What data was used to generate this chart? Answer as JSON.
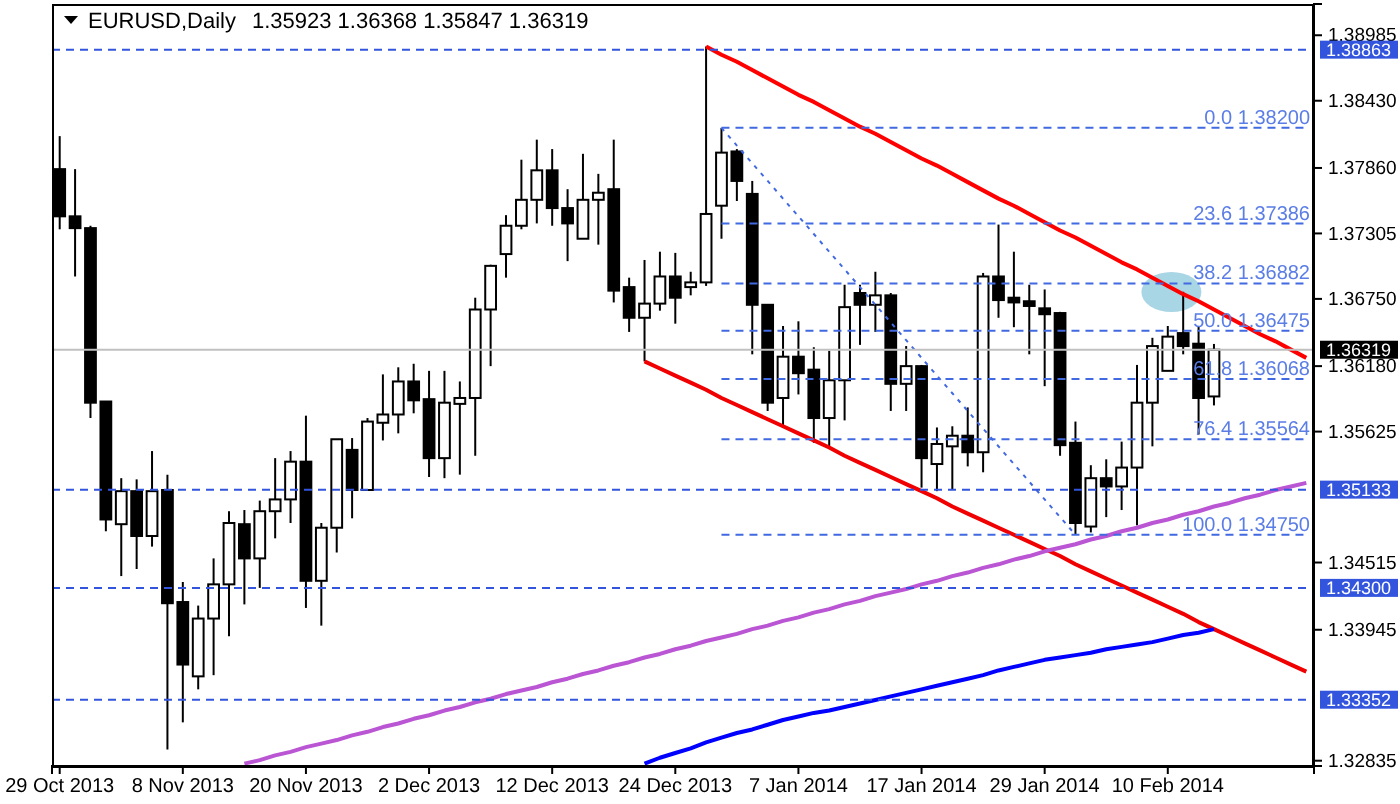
{
  "chart_data": {
    "type": "candlestick",
    "title": "EURUSD,Daily",
    "subtitle": "1.35923 1.36368 1.35847 1.36319",
    "categories": [
      "29 Oct 2013",
      null,
      null,
      null,
      null,
      null,
      null,
      null,
      "8 Nov 2013",
      null,
      null,
      null,
      null,
      null,
      null,
      null,
      "20 Nov 2013",
      null,
      null,
      null,
      null,
      null,
      null,
      null,
      "2 Dec 2013",
      null,
      null,
      null,
      null,
      null,
      null,
      null,
      "12 Dec 2013",
      null,
      null,
      null,
      null,
      null,
      null,
      null,
      "24 Dec 2013",
      null,
      null,
      null,
      null,
      null,
      null,
      null,
      "7 Jan 2014",
      null,
      null,
      null,
      null,
      null,
      null,
      null,
      "17 Jan 2014",
      null,
      null,
      null,
      null,
      null,
      null,
      null,
      "29 Jan 2014",
      null,
      null,
      null,
      null,
      null,
      null,
      null,
      "10 Feb 2014",
      null,
      null,
      null,
      null,
      null,
      null,
      null,
      null,
      null
    ],
    "ohlc": [
      [
        1.3785,
        1.3813,
        1.3734,
        1.3745
      ],
      [
        1.3745,
        1.3785,
        1.3694,
        1.3735
      ],
      [
        1.3735,
        1.3737,
        1.3574,
        1.3587
      ],
      [
        1.3588,
        1.3588,
        1.3478,
        1.3488
      ],
      [
        1.3484,
        1.3523,
        1.344,
        1.3512
      ],
      [
        1.3512,
        1.3522,
        1.3446,
        1.3474
      ],
      [
        1.3474,
        1.3546,
        1.3465,
        1.3512
      ],
      [
        1.3513,
        1.3526,
        1.3293,
        1.3417
      ],
      [
        1.3418,
        1.3435,
        1.3316,
        1.3365
      ],
      [
        1.3355,
        1.3415,
        1.3344,
        1.3404
      ],
      [
        1.3404,
        1.3455,
        1.3356,
        1.3433
      ],
      [
        1.3433,
        1.3495,
        1.3389,
        1.3485
      ],
      [
        1.3484,
        1.3496,
        1.3416,
        1.3455
      ],
      [
        1.3455,
        1.3504,
        1.343,
        1.3495
      ],
      [
        1.3495,
        1.354,
        1.3472,
        1.3505
      ],
      [
        1.3505,
        1.3546,
        1.3485,
        1.3537
      ],
      [
        1.3537,
        1.3576,
        1.3413,
        1.3436
      ],
      [
        1.3436,
        1.3485,
        1.3398,
        1.3481
      ],
      [
        1.3481,
        1.3556,
        1.346,
        1.3556
      ],
      [
        1.3547,
        1.3557,
        1.3489,
        1.3513
      ],
      [
        1.3513,
        1.3574,
        1.3513,
        1.3571
      ],
      [
        1.357,
        1.3611,
        1.3555,
        1.3577
      ],
      [
        1.3577,
        1.3617,
        1.3561,
        1.3605
      ],
      [
        1.3605,
        1.362,
        1.3578,
        1.3589
      ],
      [
        1.359,
        1.3614,
        1.3524,
        1.354
      ],
      [
        1.354,
        1.3614,
        1.3523,
        1.3587
      ],
      [
        1.3586,
        1.3605,
        1.3526,
        1.3591
      ],
      [
        1.3591,
        1.3676,
        1.3542,
        1.3666
      ],
      [
        1.3666,
        1.3704,
        1.3618,
        1.3703
      ],
      [
        1.3713,
        1.3746,
        1.3693,
        1.3737
      ],
      [
        1.3737,
        1.3793,
        1.3734,
        1.3759
      ],
      [
        1.3759,
        1.381,
        1.3739,
        1.3784
      ],
      [
        1.3784,
        1.3802,
        1.3737,
        1.3752
      ],
      [
        1.3752,
        1.3768,
        1.3707,
        1.3739
      ],
      [
        1.3726,
        1.3798,
        1.3726,
        1.3759
      ],
      [
        1.3759,
        1.3781,
        1.3721,
        1.3765
      ],
      [
        1.3768,
        1.381,
        1.3672,
        1.3682
      ],
      [
        1.3685,
        1.3693,
        1.3647,
        1.3659
      ],
      [
        1.3659,
        1.3708,
        1.3622,
        1.3671
      ],
      [
        1.3671,
        1.3715,
        1.3665,
        1.3694
      ],
      [
        1.3694,
        1.3714,
        1.3654,
        1.3676
      ],
      [
        1.3685,
        1.3698,
        1.3678,
        1.3689
      ],
      [
        1.3689,
        1.3889,
        1.3686,
        1.3747
      ],
      [
        1.3754,
        1.382,
        1.3726,
        1.3799
      ],
      [
        1.38,
        1.3802,
        1.3758,
        1.3775
      ],
      [
        1.3764,
        1.3775,
        1.3628,
        1.367
      ],
      [
        1.367,
        1.367,
        1.358,
        1.3587
      ],
      [
        1.3591,
        1.3652,
        1.3567,
        1.3626
      ],
      [
        1.3626,
        1.3656,
        1.3594,
        1.3612
      ],
      [
        1.3615,
        1.3634,
        1.3553,
        1.3574
      ],
      [
        1.3574,
        1.3631,
        1.355,
        1.3606
      ],
      [
        1.3606,
        1.3687,
        1.3572,
        1.3668
      ],
      [
        1.368,
        1.3687,
        1.3636,
        1.367
      ],
      [
        1.367,
        1.3698,
        1.3647,
        1.3678
      ],
      [
        1.3678,
        1.368,
        1.358,
        1.3603
      ],
      [
        1.3603,
        1.3635,
        1.358,
        1.3618
      ],
      [
        1.3618,
        1.3619,
        1.3515,
        1.354
      ],
      [
        1.3535,
        1.3566,
        1.3512,
        1.3552
      ],
      [
        1.355,
        1.3567,
        1.3513,
        1.3559
      ],
      [
        1.3559,
        1.3583,
        1.3533,
        1.3545
      ],
      [
        1.3545,
        1.3697,
        1.3528,
        1.3694
      ],
      [
        1.3694,
        1.3738,
        1.3659,
        1.3674
      ],
      [
        1.3676,
        1.3715,
        1.3651,
        1.3672
      ],
      [
        1.3673,
        1.3687,
        1.3628,
        1.3669
      ],
      [
        1.3667,
        1.3683,
        1.3601,
        1.3662
      ],
      [
        1.3663,
        1.3664,
        1.3542,
        1.3551
      ],
      [
        1.3553,
        1.3571,
        1.3475,
        1.3485
      ],
      [
        1.3482,
        1.3534,
        1.3477,
        1.3523
      ],
      [
        1.3523,
        1.3539,
        1.349,
        1.3516
      ],
      [
        1.3516,
        1.3554,
        1.3496,
        1.3532
      ],
      [
        1.3532,
        1.3619,
        1.3483,
        1.3587
      ],
      [
        1.3587,
        1.3642,
        1.355,
        1.3635
      ],
      [
        1.3614,
        1.3652,
        1.3614,
        1.3643
      ],
      [
        1.3646,
        1.3681,
        1.3628,
        1.3635
      ],
      [
        1.3637,
        1.3652,
        1.356,
        1.3591
      ],
      [
        1.35923,
        1.36368,
        1.35847,
        1.36319
      ],
      null,
      null,
      null,
      null,
      null,
      null
    ],
    "series": [
      {
        "type": "line",
        "color": "#ff0000",
        "line_style": "solid",
        "values": [
          null,
          null,
          null,
          null,
          null,
          null,
          null,
          null,
          null,
          null,
          null,
          null,
          null,
          null,
          null,
          null,
          null,
          null,
          null,
          null,
          null,
          null,
          null,
          null,
          null,
          null,
          null,
          null,
          null,
          null,
          null,
          null,
          null,
          null,
          null,
          null,
          null,
          null,
          null,
          null,
          null,
          null,
          1.3889,
          1.3882,
          1.3876,
          1.3869,
          1.3862,
          1.3855,
          1.3848,
          1.3842,
          1.3835,
          1.3828,
          1.3821,
          1.3815,
          1.3808,
          1.3801,
          1.3794,
          1.3788,
          1.3781,
          1.3774,
          1.3767,
          1.376,
          1.3754,
          1.3747,
          1.374,
          1.3733,
          1.3727,
          1.372,
          1.3713,
          1.3706,
          1.37,
          1.3693,
          1.3686,
          1.3679,
          1.3673,
          1.3666,
          1.3659,
          1.3652,
          1.3645,
          1.3639,
          1.3632,
          1.3625
        ]
      },
      {
        "type": "line",
        "color": "#f00000",
        "line_style": "solid",
        "values": [
          null,
          null,
          null,
          null,
          null,
          null,
          null,
          null,
          null,
          null,
          null,
          null,
          null,
          null,
          null,
          null,
          null,
          null,
          null,
          null,
          null,
          null,
          null,
          null,
          null,
          null,
          null,
          null,
          null,
          null,
          null,
          null,
          null,
          null,
          null,
          null,
          null,
          null,
          1.3622,
          1.3616,
          1.361,
          1.3604,
          1.3598,
          1.3591,
          1.3585,
          1.3579,
          1.3573,
          1.3567,
          1.3561,
          1.3555,
          1.3549,
          1.3542,
          1.3536,
          1.353,
          1.3524,
          1.3518,
          1.3512,
          1.3506,
          1.3499,
          1.3493,
          1.3487,
          1.3481,
          1.3475,
          1.3469,
          1.3463,
          1.3457,
          1.345,
          1.3444,
          1.3438,
          1.3432,
          1.3426,
          1.342,
          1.3414,
          1.3408,
          1.3401,
          1.3395,
          1.3389,
          1.3383,
          1.3377,
          1.3371,
          1.3365,
          1.3359
        ]
      },
      {
        "type": "line",
        "color": "#ba55d3",
        "line_style": "solid",
        "values": [
          null,
          null,
          null,
          null,
          null,
          null,
          null,
          null,
          null,
          null,
          null,
          null,
          1.3281,
          1.3284,
          1.3288,
          1.3291,
          1.3295,
          1.3298,
          1.3301,
          1.3305,
          1.3308,
          1.3312,
          1.3315,
          1.3319,
          1.3322,
          1.3326,
          1.3329,
          1.3333,
          1.3336,
          1.334,
          1.3343,
          1.3346,
          1.335,
          1.3353,
          1.3357,
          1.336,
          1.3364,
          1.3367,
          1.3371,
          1.3374,
          1.3378,
          1.3381,
          1.3385,
          1.3388,
          1.3391,
          1.3395,
          1.3398,
          1.3402,
          1.3405,
          1.3409,
          1.3412,
          1.3416,
          1.3419,
          1.3423,
          1.3426,
          1.3429,
          1.3433,
          1.3436,
          1.344,
          1.3443,
          1.3447,
          1.345,
          1.3454,
          1.3457,
          1.3461,
          1.3464,
          1.3467,
          1.3471,
          1.3474,
          1.3478,
          1.3481,
          1.3485,
          1.3488,
          1.3492,
          1.3495,
          1.3499,
          1.3502,
          1.3506,
          1.3509,
          1.3513,
          1.3516,
          1.3519
        ]
      },
      {
        "type": "line",
        "color": "#0000ff",
        "line_style": "solid",
        "values": [
          null,
          null,
          null,
          null,
          null,
          null,
          null,
          null,
          null,
          null,
          null,
          null,
          null,
          null,
          null,
          null,
          null,
          null,
          null,
          null,
          null,
          null,
          null,
          null,
          null,
          null,
          null,
          null,
          null,
          null,
          null,
          null,
          null,
          null,
          null,
          null,
          null,
          null,
          1.3281,
          1.3286,
          1.329,
          1.3294,
          1.3299,
          1.3303,
          1.3307,
          1.331,
          1.3314,
          1.3318,
          1.3321,
          1.3324,
          1.3326,
          1.3329,
          1.3332,
          1.3335,
          1.3338,
          1.3341,
          1.3344,
          1.3347,
          1.335,
          1.3353,
          1.3356,
          1.336,
          1.3363,
          1.3366,
          1.3369,
          1.3371,
          1.3373,
          1.3375,
          1.3378,
          1.338,
          1.3382,
          1.3384,
          1.3387,
          1.339,
          1.3392,
          1.3395,
          null,
          null,
          null,
          null,
          null,
          null
        ]
      },
      {
        "type": "line",
        "color": "#4169e1",
        "line_style": "dotted",
        "values": [
          null,
          null,
          null,
          null,
          null,
          null,
          null,
          null,
          null,
          null,
          null,
          null,
          null,
          null,
          null,
          null,
          null,
          null,
          null,
          null,
          null,
          null,
          null,
          null,
          null,
          null,
          null,
          null,
          null,
          null,
          null,
          null,
          null,
          null,
          null,
          null,
          null,
          null,
          null,
          null,
          null,
          null,
          null,
          1.382,
          1.3805,
          1.379,
          1.3775,
          1.376,
          1.3745,
          1.373,
          1.3715,
          1.37,
          1.3685,
          1.367,
          1.3655,
          1.364,
          1.3625,
          1.361,
          1.3595,
          1.358,
          1.3565,
          1.355,
          1.3535,
          1.352,
          1.3505,
          1.349,
          1.3475,
          null,
          null,
          null,
          null,
          null,
          null,
          null,
          null,
          null,
          null,
          null,
          null,
          null,
          null,
          null
        ]
      },
      {
        "type": "line",
        "color": "#4169e1",
        "line_style": "dashed",
        "values": [
          null,
          null,
          null,
          null,
          null,
          null,
          null,
          null,
          null,
          null,
          null,
          null,
          null,
          null,
          null,
          null,
          null,
          null,
          null,
          null,
          null,
          null,
          null,
          null,
          null,
          null,
          null,
          null,
          null,
          null,
          null,
          null,
          null,
          null,
          null,
          null,
          null,
          null,
          null,
          null,
          null,
          null,
          null,
          1.382,
          1.382,
          1.382,
          1.382,
          1.382,
          1.382,
          1.382,
          1.382,
          1.382,
          1.382,
          1.382,
          1.382,
          1.382,
          1.382,
          1.382,
          1.382,
          1.382,
          1.382,
          1.382,
          1.382,
          1.382,
          1.382,
          1.382,
          1.382,
          1.382,
          1.382,
          1.382,
          1.382,
          1.382,
          1.382,
          1.382,
          1.382,
          1.382,
          1.382,
          1.382,
          1.382,
          1.382,
          1.382,
          1.382
        ]
      },
      {
        "type": "line",
        "color": "#4169e1",
        "line_style": "dashed",
        "values": [
          null,
          null,
          null,
          null,
          null,
          null,
          null,
          null,
          null,
          null,
          null,
          null,
          null,
          null,
          null,
          null,
          null,
          null,
          null,
          null,
          null,
          null,
          null,
          null,
          null,
          null,
          null,
          null,
          null,
          null,
          null,
          null,
          null,
          null,
          null,
          null,
          null,
          null,
          null,
          null,
          null,
          null,
          null,
          1.3739,
          1.3739,
          1.3739,
          1.3739,
          1.3739,
          1.3739,
          1.3739,
          1.3739,
          1.3739,
          1.3739,
          1.3739,
          1.3739,
          1.3739,
          1.3739,
          1.3739,
          1.3739,
          1.3739,
          1.3739,
          1.3739,
          1.3739,
          1.3739,
          1.3739,
          1.3739,
          1.3739,
          1.3739,
          1.3739,
          1.3739,
          1.3739,
          1.3739,
          1.3739,
          1.3739,
          1.3739,
          1.3739,
          1.3739,
          1.3739,
          1.3739,
          1.3739,
          1.3739,
          1.3739
        ]
      },
      {
        "type": "line",
        "color": "#4169e1",
        "line_style": "dashed",
        "values": [
          null,
          null,
          null,
          null,
          null,
          null,
          null,
          null,
          null,
          null,
          null,
          null,
          null,
          null,
          null,
          null,
          null,
          null,
          null,
          null,
          null,
          null,
          null,
          null,
          null,
          null,
          null,
          null,
          null,
          null,
          null,
          null,
          null,
          null,
          null,
          null,
          null,
          null,
          null,
          null,
          null,
          null,
          null,
          1.3688,
          1.3688,
          1.3688,
          1.3688,
          1.3688,
          1.3688,
          1.3688,
          1.3688,
          1.3688,
          1.3688,
          1.3688,
          1.3688,
          1.3688,
          1.3688,
          1.3688,
          1.3688,
          1.3688,
          1.3688,
          1.3688,
          1.3688,
          1.3688,
          1.3688,
          1.3688,
          1.3688,
          1.3688,
          1.3688,
          1.3688,
          1.3688,
          1.3688,
          1.3688,
          1.3688,
          1.3688,
          1.3688,
          1.3688,
          1.3688,
          1.3688,
          1.3688,
          1.3688,
          1.3688
        ]
      },
      {
        "type": "line",
        "color": "#4169e1",
        "line_style": "dashed",
        "values": [
          null,
          null,
          null,
          null,
          null,
          null,
          null,
          null,
          null,
          null,
          null,
          null,
          null,
          null,
          null,
          null,
          null,
          null,
          null,
          null,
          null,
          null,
          null,
          null,
          null,
          null,
          null,
          null,
          null,
          null,
          null,
          null,
          null,
          null,
          null,
          null,
          null,
          null,
          null,
          null,
          null,
          null,
          null,
          1.3648,
          1.3648,
          1.3648,
          1.3648,
          1.3648,
          1.3648,
          1.3648,
          1.3648,
          1.3648,
          1.3648,
          1.3648,
          1.3648,
          1.3648,
          1.3648,
          1.3648,
          1.3648,
          1.3648,
          1.3648,
          1.3648,
          1.3648,
          1.3648,
          1.3648,
          1.3648,
          1.3648,
          1.3648,
          1.3648,
          1.3648,
          1.3648,
          1.3648,
          1.3648,
          1.3648,
          1.3648,
          1.3648,
          1.3648,
          1.3648,
          1.3648,
          1.3648,
          1.3648,
          1.3648
        ]
      },
      {
        "type": "line",
        "color": "#4169e1",
        "line_style": "dashed",
        "values": [
          null,
          null,
          null,
          null,
          null,
          null,
          null,
          null,
          null,
          null,
          null,
          null,
          null,
          null,
          null,
          null,
          null,
          null,
          null,
          null,
          null,
          null,
          null,
          null,
          null,
          null,
          null,
          null,
          null,
          null,
          null,
          null,
          null,
          null,
          null,
          null,
          null,
          null,
          null,
          null,
          null,
          null,
          null,
          1.3607,
          1.3607,
          1.3607,
          1.3607,
          1.3607,
          1.3607,
          1.3607,
          1.3607,
          1.3607,
          1.3607,
          1.3607,
          1.3607,
          1.3607,
          1.3607,
          1.3607,
          1.3607,
          1.3607,
          1.3607,
          1.3607,
          1.3607,
          1.3607,
          1.3607,
          1.3607,
          1.3607,
          1.3607,
          1.3607,
          1.3607,
          1.3607,
          1.3607,
          1.3607,
          1.3607,
          1.3607,
          1.3607,
          1.3607,
          1.3607,
          1.3607,
          1.3607,
          1.3607,
          1.3607
        ]
      },
      {
        "type": "line",
        "color": "#4169e1",
        "line_style": "dashed",
        "values": [
          null,
          null,
          null,
          null,
          null,
          null,
          null,
          null,
          null,
          null,
          null,
          null,
          null,
          null,
          null,
          null,
          null,
          null,
          null,
          null,
          null,
          null,
          null,
          null,
          null,
          null,
          null,
          null,
          null,
          null,
          null,
          null,
          null,
          null,
          null,
          null,
          null,
          null,
          null,
          null,
          null,
          null,
          null,
          1.3556,
          1.3556,
          1.3556,
          1.3556,
          1.3556,
          1.3556,
          1.3556,
          1.3556,
          1.3556,
          1.3556,
          1.3556,
          1.3556,
          1.3556,
          1.3556,
          1.3556,
          1.3556,
          1.3556,
          1.3556,
          1.3556,
          1.3556,
          1.3556,
          1.3556,
          1.3556,
          1.3556,
          1.3556,
          1.3556,
          1.3556,
          1.3556,
          1.3556,
          1.3556,
          1.3556,
          1.3556,
          1.3556,
          1.3556,
          1.3556,
          1.3556,
          1.3556,
          1.3556,
          1.3556
        ]
      },
      {
        "type": "line",
        "color": "#4169e1",
        "line_style": "dashed",
        "values": [
          null,
          null,
          null,
          null,
          null,
          null,
          null,
          null,
          null,
          null,
          null,
          null,
          null,
          null,
          null,
          null,
          null,
          null,
          null,
          null,
          null,
          null,
          null,
          null,
          null,
          null,
          null,
          null,
          null,
          null,
          null,
          null,
          null,
          null,
          null,
          null,
          null,
          null,
          null,
          null,
          null,
          null,
          null,
          1.3475,
          1.3475,
          1.3475,
          1.3475,
          1.3475,
          1.3475,
          1.3475,
          1.3475,
          1.3475,
          1.3475,
          1.3475,
          1.3475,
          1.3475,
          1.3475,
          1.3475,
          1.3475,
          1.3475,
          1.3475,
          1.3475,
          1.3475,
          1.3475,
          1.3475,
          1.3475,
          1.3475,
          1.3475,
          1.3475,
          1.3475,
          1.3475,
          1.3475,
          1.3475,
          1.3475,
          1.3475,
          1.3475,
          1.3475,
          1.3475,
          1.3475,
          1.3475,
          1.3475,
          1.3475
        ]
      }
    ],
    "annotations": [
      {
        "text": "0.0 1.38200",
        "y": 1.382
      },
      {
        "text": "23.6 1.37386",
        "y": 1.37386
      },
      {
        "text": "38.2 1.36882",
        "y": 1.36882
      },
      {
        "text": "50.0 1.36475",
        "y": 1.36475
      },
      {
        "text": "61.8 1.36068",
        "y": 1.36068
      },
      {
        "text": "76.4 1.35564",
        "y": 1.35564
      },
      {
        "text": "100.0 1.34750",
        "y": 1.3475
      }
    ],
    "ref_lines": [
      {
        "axis": "y",
        "value": 1.38863,
        "label": "1.38863",
        "color": "#3355dd",
        "line_style": "dashed"
      },
      {
        "axis": "y",
        "value": 1.35133,
        "label": "1.35133",
        "color": "#3355dd",
        "line_style": "dashed"
      },
      {
        "axis": "y",
        "value": 1.343,
        "label": "1.34300",
        "color": "#3355dd",
        "line_style": "dashed"
      },
      {
        "axis": "y",
        "value": 1.33352,
        "label": "1.33352",
        "color": "#3355dd",
        "line_style": "dashed"
      },
      {
        "axis": "y",
        "value": 1.36319,
        "label": "1.36319",
        "color": "#c0c0c0",
        "line_style": "solid"
      }
    ],
    "ylim": [
      1.3279,
      1.3925
    ],
    "yticks": [
      1.38985,
      {
        "value": 1.3843,
        "label": "1.38430"
      },
      {
        "value": 1.3786,
        "label": "1.37860"
      },
      1.37305,
      {
        "value": 1.3675,
        "label": "1.36750"
      },
      {
        "value": 1.3618,
        "label": "1.36180"
      },
      1.35625,
      1.34515,
      1.33945,
      1.32835
    ]
  }
}
